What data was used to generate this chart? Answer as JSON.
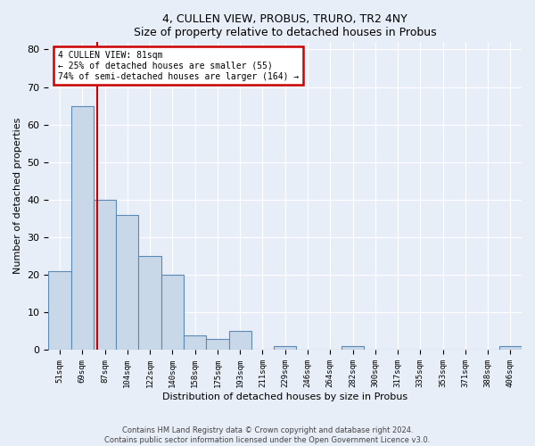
{
  "title1": "4, CULLEN VIEW, PROBUS, TRURO, TR2 4NY",
  "title2": "Size of property relative to detached houses in Probus",
  "xlabel": "Distribution of detached houses by size in Probus",
  "ylabel": "Number of detached properties",
  "footer1": "Contains HM Land Registry data © Crown copyright and database right 2024.",
  "footer2": "Contains public sector information licensed under the Open Government Licence v3.0.",
  "bar_labels": [
    "51sqm",
    "69sqm",
    "87sqm",
    "104sqm",
    "122sqm",
    "140sqm",
    "158sqm",
    "175sqm",
    "193sqm",
    "211sqm",
    "229sqm",
    "246sqm",
    "264sqm",
    "282sqm",
    "300sqm",
    "317sqm",
    "335sqm",
    "353sqm",
    "371sqm",
    "388sqm",
    "406sqm"
  ],
  "bar_values": [
    21,
    65,
    40,
    36,
    25,
    20,
    4,
    3,
    5,
    0,
    1,
    0,
    0,
    1,
    0,
    0,
    0,
    0,
    0,
    0,
    1
  ],
  "bar_color": "#c8d8e8",
  "bar_edge_color": "#5a8ab5",
  "ylim": [
    0,
    82
  ],
  "yticks": [
    0,
    10,
    20,
    30,
    40,
    50,
    60,
    70,
    80
  ],
  "annotation_box_text": "4 CULLEN VIEW: 81sqm\n← 25% of detached houses are smaller (55)\n74% of semi-detached houses are larger (164) →",
  "annotation_box_color": "#ffffff",
  "annotation_box_edge_color": "#cc0000",
  "background_color": "#e8eef8",
  "grid_color": "#ffffff"
}
